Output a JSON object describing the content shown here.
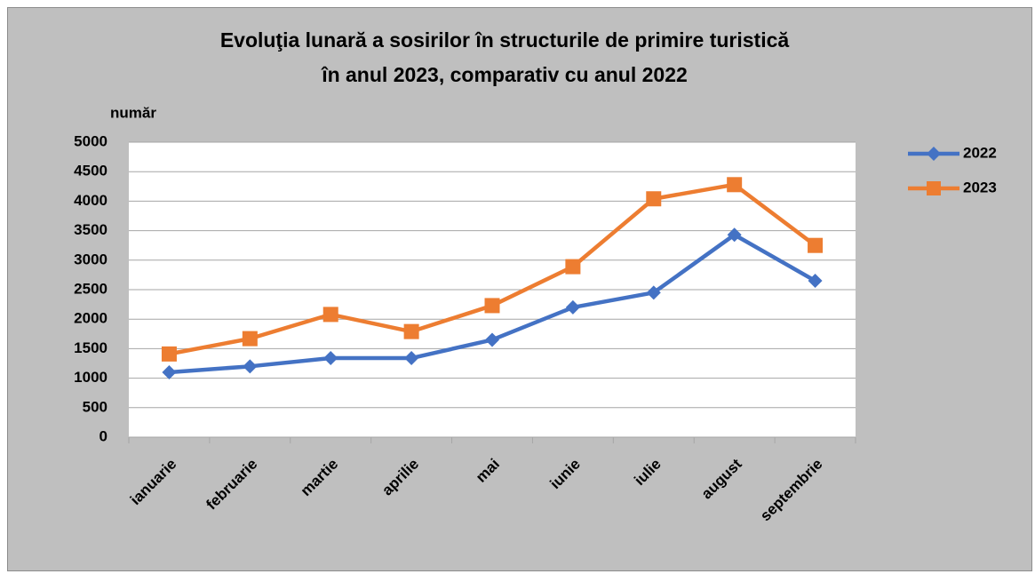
{
  "chart_data": {
    "type": "line",
    "title": [
      "Evoluţia lunară a sosirilor în structurile de primire turistică",
      "în anul 2023, comparativ cu anul 2022"
    ],
    "y_label": "număr",
    "categories": [
      "ianuarie",
      "februarie",
      "martie",
      "aprilie",
      "mai",
      "iunie",
      "iulie",
      "august",
      "septembrie"
    ],
    "series": [
      {
        "name": "2022",
        "color": "#4472c4",
        "marker": "diamond",
        "values": [
          1100,
          1200,
          1340,
          1340,
          1650,
          2200,
          2450,
          3430,
          2650
        ]
      },
      {
        "name": "2023",
        "color": "#ed7d31",
        "marker": "square",
        "values": [
          1410,
          1670,
          2080,
          1790,
          2230,
          2890,
          4040,
          4280,
          3250
        ]
      }
    ],
    "ylim": [
      0,
      5000
    ],
    "yticks": [
      0,
      500,
      1000,
      1500,
      2000,
      2500,
      3000,
      3500,
      4000,
      4500,
      5000
    ],
    "grid": true,
    "legend": "right"
  }
}
